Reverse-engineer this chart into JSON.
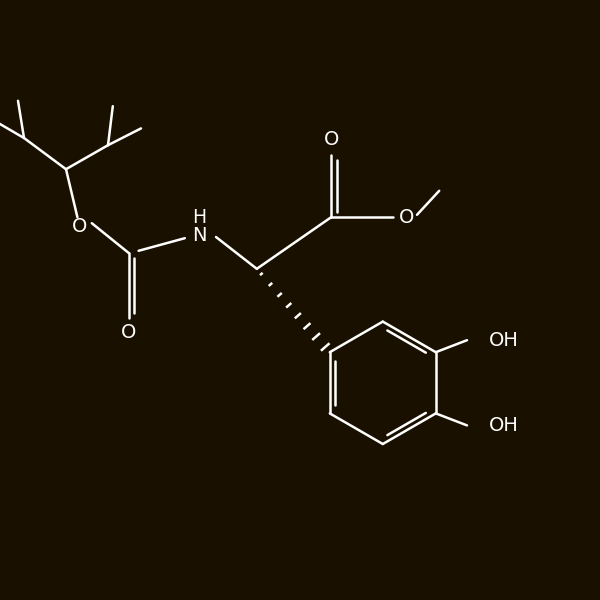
{
  "bg_color": "#1a1000",
  "line_color": "#ffffff",
  "text_color": "#ffffff",
  "lw": 1.8,
  "fs": 14,
  "figsize": [
    6.0,
    6.0
  ],
  "dpi": 100,
  "xlim": [
    0,
    10
  ],
  "ylim": [
    0,
    10
  ]
}
